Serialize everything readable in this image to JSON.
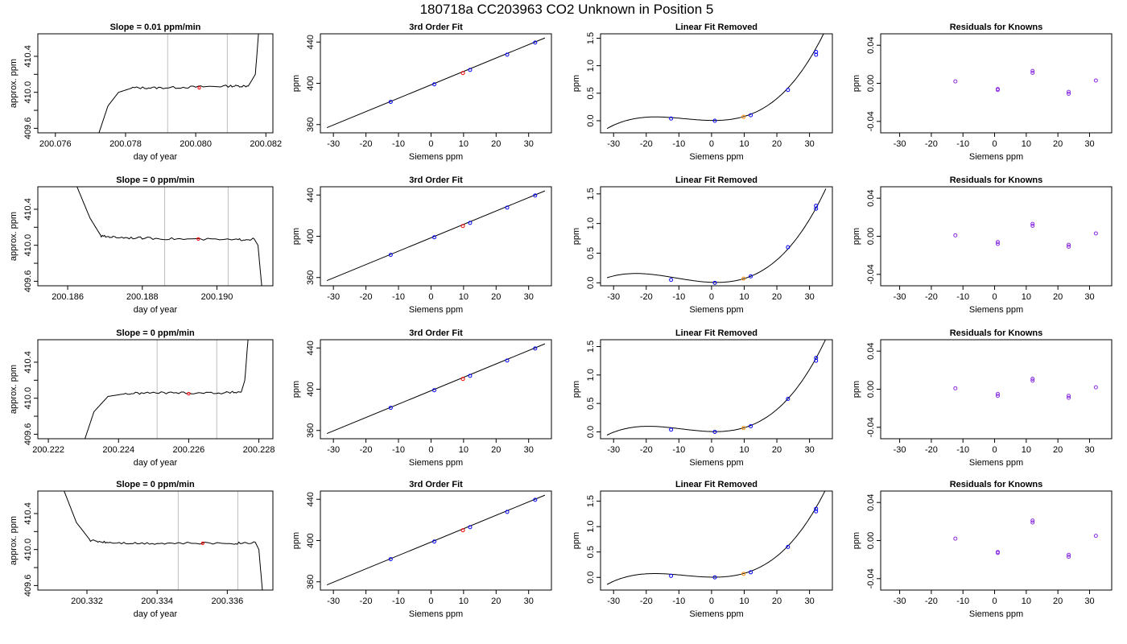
{
  "figure_title": "180718a      CC203963    CO2 Unknown in Position  5",
  "colors": {
    "line": "#000000",
    "known_point": "#0000ff",
    "unknown_point": "#ff0000",
    "residual_point": "#8a2be2",
    "fit_unknown_marker": "#ff8c00",
    "window_line": "#bdbdbd"
  },
  "chart_data": [
    {
      "type": "line",
      "row": 0,
      "title": "Slope =  0.01  ppm/min",
      "xlabel": "day of year",
      "ylabel": "approx. ppm",
      "xlim": [
        200.0755,
        200.0822
      ],
      "ylim": [
        409.55,
        410.65
      ],
      "xticks": [
        200.076,
        200.078,
        200.08,
        200.082
      ],
      "xtick_labels": [
        "200.076",
        "200.078",
        "200.080",
        "200.082"
      ],
      "yticks": [
        409.6,
        410.0,
        410.4
      ],
      "ytick_labels": [
        "409.6",
        "410.0",
        "410.4"
      ],
      "trace": [
        [
          200.0772,
          409.5
        ],
        [
          200.0775,
          409.85
        ],
        [
          200.0778,
          410.0
        ],
        [
          200.0782,
          410.05
        ],
        [
          200.079,
          410.05
        ],
        [
          200.08,
          410.06
        ],
        [
          200.081,
          410.07
        ],
        [
          200.0815,
          410.07
        ],
        [
          200.0817,
          410.2
        ],
        [
          200.0818,
          410.7
        ]
      ],
      "window": [
        200.0792,
        200.0809
      ],
      "unknown_point": [
        200.0801,
        410.05
      ]
    },
    {
      "type": "scatter",
      "row": 0,
      "title": "3rd Order Fit",
      "xlabel": "Siemens ppm",
      "ylabel": "ppm",
      "xlim": [
        -34,
        37
      ],
      "ylim": [
        352,
        448
      ],
      "xticks": [
        -30,
        -20,
        -10,
        0,
        10,
        20,
        30
      ],
      "xtick_labels": [
        "-30",
        "-20",
        "-10",
        "0",
        "10",
        "20",
        "30"
      ],
      "yticks": [
        360,
        400,
        440
      ],
      "ytick_labels": [
        "360",
        "400",
        "440"
      ],
      "fit_line": [
        [
          -32,
          357
        ],
        [
          35,
          444
        ]
      ],
      "known_points": [
        [
          -12.4,
          382
        ],
        [
          1,
          399
        ],
        [
          12,
          413
        ],
        [
          23.4,
          427.8
        ],
        [
          32,
          439.5
        ]
      ],
      "unknown_points": [
        [
          9.8,
          410
        ]
      ]
    },
    {
      "type": "line",
      "row": 0,
      "title": "Linear Fit Removed",
      "xlabel": "Siemens ppm",
      "ylabel": "ppm",
      "xlim": [
        -34,
        37
      ],
      "ylim": [
        -0.22,
        1.58
      ],
      "xticks": [
        -30,
        -20,
        -10,
        0,
        10,
        20,
        30
      ],
      "xtick_labels": [
        "-30",
        "-20",
        "-10",
        "0",
        "10",
        "20",
        "30"
      ],
      "yticks": [
        0,
        0.5,
        1.0,
        1.5
      ],
      "ytick_labels": [
        "0.0",
        "0.5",
        "1.0",
        "1.5"
      ],
      "curve_poly": {
        "d": 2.3e-05,
        "c": 0.00057,
        "b": -0.00072,
        "a": 0.005
      },
      "curve_xrange": [
        -32,
        35
      ],
      "known_points": [
        [
          -12.4,
          0.04
        ],
        [
          1,
          0.0
        ],
        [
          12,
          0.1
        ],
        [
          23.4,
          0.56
        ],
        [
          32,
          1.2
        ],
        [
          32,
          1.25
        ]
      ],
      "unknown_points": [
        [
          9.8,
          0.07
        ]
      ]
    },
    {
      "type": "scatter",
      "row": 0,
      "title": "Residuals for Knowns",
      "xlabel": "Siemens ppm",
      "ylabel": "ppm",
      "xlim": [
        -36,
        37
      ],
      "ylim": [
        -0.052,
        0.052
      ],
      "xticks": [
        -30,
        -20,
        -10,
        0,
        10,
        20,
        30
      ],
      "xtick_labels": [
        "-30",
        "-20",
        "-10",
        "0",
        "10",
        "20",
        "30"
      ],
      "yticks": [
        -0.04,
        0.0,
        0.04
      ],
      "ytick_labels": [
        "-0.04",
        "0.00",
        "0.04"
      ],
      "points": [
        [
          -12.4,
          0.002
        ],
        [
          1,
          -0.006
        ],
        [
          1,
          -0.007
        ],
        [
          12,
          0.011
        ],
        [
          12,
          0.013
        ],
        [
          23.4,
          -0.009
        ],
        [
          23.4,
          -0.011
        ],
        [
          32,
          0.003
        ]
      ]
    },
    {
      "type": "line",
      "row": 1,
      "title": "Slope =  0  ppm/min",
      "xlabel": "day of year",
      "ylabel": "approx. ppm",
      "xlim": [
        200.1852,
        200.1915
      ],
      "ylim": [
        409.55,
        410.65
      ],
      "xticks": [
        200.186,
        200.188,
        200.19
      ],
      "xtick_labels": [
        "200.186",
        "200.188",
        "200.190"
      ],
      "yticks": [
        409.6,
        410.0,
        410.4
      ],
      "ytick_labels": [
        "409.6",
        "410.0",
        "410.4"
      ],
      "trace": [
        [
          200.1862,
          410.7
        ],
        [
          200.1866,
          410.3
        ],
        [
          200.1869,
          410.1
        ],
        [
          200.1873,
          410.09
        ],
        [
          200.188,
          410.08
        ],
        [
          200.189,
          410.07
        ],
        [
          200.1905,
          410.06
        ],
        [
          200.191,
          410.07
        ],
        [
          200.1911,
          410.0
        ],
        [
          200.1912,
          409.55
        ]
      ],
      "window": [
        200.1886,
        200.1903
      ],
      "unknown_point": [
        200.1895,
        410.07
      ]
    },
    {
      "type": "scatter",
      "row": 1,
      "title": "3rd Order Fit",
      "xlabel": "Siemens ppm",
      "ylabel": "ppm",
      "xlim": [
        -34,
        37
      ],
      "ylim": [
        352,
        448
      ],
      "xticks": [
        -30,
        -20,
        -10,
        0,
        10,
        20,
        30
      ],
      "xtick_labels": [
        "-30",
        "-20",
        "-10",
        "0",
        "10",
        "20",
        "30"
      ],
      "yticks": [
        360,
        400,
        440
      ],
      "ytick_labels": [
        "360",
        "400",
        "440"
      ],
      "fit_line": [
        [
          -32,
          357
        ],
        [
          35,
          444
        ]
      ],
      "known_points": [
        [
          -12.4,
          382
        ],
        [
          1,
          399
        ],
        [
          12,
          413
        ],
        [
          23.4,
          427.8
        ],
        [
          32,
          439.5
        ]
      ],
      "unknown_points": [
        [
          9.8,
          410
        ]
      ]
    },
    {
      "type": "line",
      "row": 1,
      "title": "Linear Fit Removed",
      "xlabel": "Siemens ppm",
      "ylabel": "ppm",
      "xlim": [
        -34,
        37
      ],
      "ylim": [
        -0.05,
        1.62
      ],
      "xticks": [
        -30,
        -20,
        -10,
        0,
        10,
        20,
        30
      ],
      "xtick_labels": [
        "-30",
        "-20",
        "-10",
        "0",
        "10",
        "20",
        "30"
      ],
      "yticks": [
        0,
        0.5,
        1.0,
        1.5
      ],
      "ytick_labels": [
        "0.0",
        "0.5",
        "1.0",
        "1.5"
      ],
      "curve_poly": {
        "d": 2e-05,
        "c": 0.00065,
        "b": -0.0021,
        "a": 0.008
      },
      "curve_xrange": [
        -32,
        35
      ],
      "known_points": [
        [
          -12.4,
          0.05
        ],
        [
          1,
          0.0
        ],
        [
          12,
          0.11
        ],
        [
          23.4,
          0.6
        ],
        [
          32,
          1.25
        ],
        [
          32,
          1.3
        ]
      ],
      "unknown_points": [
        [
          9.8,
          0.07
        ]
      ]
    },
    {
      "type": "scatter",
      "row": 1,
      "title": "Residuals for Knowns",
      "xlabel": "Siemens ppm",
      "ylabel": "ppm",
      "xlim": [
        -36,
        37
      ],
      "ylim": [
        -0.052,
        0.052
      ],
      "xticks": [
        -30,
        -20,
        -10,
        0,
        10,
        20,
        30
      ],
      "xtick_labels": [
        "-30",
        "-20",
        "-10",
        "0",
        "10",
        "20",
        "30"
      ],
      "yticks": [
        -0.04,
        0.0,
        0.04
      ],
      "ytick_labels": [
        "-0.04",
        "0.00",
        "0.04"
      ],
      "points": [
        [
          -12.4,
          0.001
        ],
        [
          1,
          -0.006
        ],
        [
          1,
          -0.008
        ],
        [
          12,
          0.011
        ],
        [
          12,
          0.013
        ],
        [
          23.4,
          -0.009
        ],
        [
          23.4,
          -0.011
        ],
        [
          32,
          0.003
        ]
      ]
    },
    {
      "type": "line",
      "row": 2,
      "title": "Slope =  0  ppm/min",
      "xlabel": "day of year",
      "ylabel": "approx. ppm",
      "xlim": [
        200.2217,
        200.2284
      ],
      "ylim": [
        409.55,
        410.65
      ],
      "xticks": [
        200.222,
        200.224,
        200.226,
        200.228
      ],
      "xtick_labels": [
        "200.222",
        "200.224",
        "200.226",
        "200.228"
      ],
      "yticks": [
        409.6,
        410.0,
        410.4
      ],
      "ytick_labels": [
        "409.6",
        "410.0",
        "410.4"
      ],
      "trace": [
        [
          200.223,
          409.5
        ],
        [
          200.2233,
          409.85
        ],
        [
          200.2237,
          410.02
        ],
        [
          200.2242,
          410.05
        ],
        [
          200.225,
          410.06
        ],
        [
          200.226,
          410.06
        ],
        [
          200.227,
          410.06
        ],
        [
          200.2275,
          410.07
        ],
        [
          200.2276,
          410.2
        ],
        [
          200.2277,
          410.7
        ]
      ],
      "window": [
        200.2251,
        200.2268
      ],
      "unknown_point": [
        200.226,
        410.05
      ]
    },
    {
      "type": "scatter",
      "row": 2,
      "title": "3rd Order Fit",
      "xlabel": "Siemens ppm",
      "ylabel": "ppm",
      "xlim": [
        -34,
        37
      ],
      "ylim": [
        352,
        448
      ],
      "xticks": [
        -30,
        -20,
        -10,
        0,
        10,
        20,
        30
      ],
      "xtick_labels": [
        "-30",
        "-20",
        "-10",
        "0",
        "10",
        "20",
        "30"
      ],
      "yticks": [
        360,
        400,
        440
      ],
      "ytick_labels": [
        "360",
        "400",
        "440"
      ],
      "fit_line": [
        [
          -32,
          357
        ],
        [
          35,
          444
        ]
      ],
      "known_points": [
        [
          -12.4,
          382
        ],
        [
          1,
          399
        ],
        [
          12,
          413
        ],
        [
          23.4,
          427.8
        ],
        [
          32,
          439.5
        ]
      ],
      "unknown_points": [
        [
          9.8,
          410
        ]
      ]
    },
    {
      "type": "line",
      "row": 2,
      "title": "Linear Fit Removed",
      "xlabel": "Siemens ppm",
      "ylabel": "ppm",
      "xlim": [
        -34,
        37
      ],
      "ylim": [
        -0.12,
        1.62
      ],
      "xticks": [
        -30,
        -20,
        -10,
        0,
        10,
        20,
        30
      ],
      "xtick_labels": [
        "-30",
        "-20",
        "-10",
        "0",
        "10",
        "20",
        "30"
      ],
      "yticks": [
        0,
        0.5,
        1.0,
        1.5
      ],
      "ytick_labels": [
        "0.0",
        "0.5",
        "1.0",
        "1.5"
      ],
      "curve_poly": {
        "d": 2.2e-05,
        "c": 0.0006,
        "b": -0.0014,
        "a": 0.006
      },
      "curve_xrange": [
        -32,
        35
      ],
      "known_points": [
        [
          -12.4,
          0.04
        ],
        [
          1,
          0.0
        ],
        [
          12,
          0.1
        ],
        [
          23.4,
          0.58
        ],
        [
          32,
          1.25
        ],
        [
          32,
          1.3
        ]
      ],
      "unknown_points": [
        [
          9.8,
          0.07
        ]
      ]
    },
    {
      "type": "scatter",
      "row": 2,
      "title": "Residuals for Knowns",
      "xlabel": "Siemens ppm",
      "ylabel": "ppm",
      "xlim": [
        -36,
        37
      ],
      "ylim": [
        -0.052,
        0.052
      ],
      "xticks": [
        -30,
        -20,
        -10,
        0,
        10,
        20,
        30
      ],
      "xtick_labels": [
        "-30",
        "-20",
        "-10",
        "0",
        "10",
        "20",
        "30"
      ],
      "yticks": [
        -0.04,
        0.0,
        0.04
      ],
      "ytick_labels": [
        "-0.04",
        "0.00",
        "0.04"
      ],
      "points": [
        [
          -12.4,
          0.001
        ],
        [
          1,
          -0.005
        ],
        [
          1,
          -0.007
        ],
        [
          12,
          0.009
        ],
        [
          12,
          0.011
        ],
        [
          23.4,
          -0.007
        ],
        [
          23.4,
          -0.009
        ],
        [
          32,
          0.002
        ]
      ]
    },
    {
      "type": "line",
      "row": 3,
      "title": "Slope =  0  ppm/min",
      "xlabel": "day of year",
      "ylabel": "approx. ppm",
      "xlim": [
        200.3306,
        200.3373
      ],
      "ylim": [
        409.55,
        410.65
      ],
      "xticks": [
        200.332,
        200.334,
        200.336
      ],
      "xtick_labels": [
        "200.332",
        "200.334",
        "200.336"
      ],
      "yticks": [
        409.6,
        410.0,
        410.4
      ],
      "ytick_labels": [
        "409.6",
        "410.0",
        "410.4"
      ],
      "trace": [
        [
          200.3313,
          410.7
        ],
        [
          200.3317,
          410.3
        ],
        [
          200.3321,
          410.1
        ],
        [
          200.3326,
          410.08
        ],
        [
          200.3335,
          410.07
        ],
        [
          200.3345,
          410.07
        ],
        [
          200.3362,
          410.07
        ],
        [
          200.3368,
          410.08
        ],
        [
          200.3369,
          410.0
        ],
        [
          200.337,
          409.55
        ]
      ],
      "window": [
        200.3346,
        200.3363
      ],
      "unknown_point": [
        200.3353,
        410.07
      ]
    },
    {
      "type": "scatter",
      "row": 3,
      "title": "3rd Order Fit",
      "xlabel": "Siemens ppm",
      "ylabel": "ppm",
      "xlim": [
        -34,
        37
      ],
      "ylim": [
        352,
        448
      ],
      "xticks": [
        -30,
        -20,
        -10,
        0,
        10,
        20,
        30
      ],
      "xtick_labels": [
        "-30",
        "-20",
        "-10",
        "0",
        "10",
        "20",
        "30"
      ],
      "yticks": [
        360,
        400,
        440
      ],
      "ytick_labels": [
        "360",
        "400",
        "440"
      ],
      "fit_line": [
        [
          -32,
          357
        ],
        [
          35,
          444
        ]
      ],
      "known_points": [
        [
          -12.4,
          382
        ],
        [
          1,
          399
        ],
        [
          12,
          413
        ],
        [
          23.4,
          427.8
        ],
        [
          32,
          439.5
        ]
      ],
      "unknown_points": [
        [
          9.8,
          410
        ]
      ]
    },
    {
      "type": "line",
      "row": 3,
      "title": "Linear Fit Removed",
      "xlabel": "Siemens ppm",
      "ylabel": "ppm",
      "xlim": [
        -34,
        37
      ],
      "ylim": [
        -0.25,
        1.7
      ],
      "xticks": [
        -30,
        -20,
        -10,
        0,
        10,
        20,
        30
      ],
      "xtick_labels": [
        "-30",
        "-20",
        "-10",
        "0",
        "10",
        "20",
        "30"
      ],
      "yticks": [
        0,
        0.5,
        1.0,
        1.5
      ],
      "ytick_labels": [
        "0.0",
        "0.5",
        "1.0",
        "1.5"
      ],
      "curve_poly": {
        "d": 2.4e-05,
        "c": 0.0006,
        "b": -0.0009,
        "a": 0.004
      },
      "curve_xrange": [
        -32,
        35
      ],
      "known_points": [
        [
          -12.4,
          0.03
        ],
        [
          1,
          0.0
        ],
        [
          12,
          0.1
        ],
        [
          23.4,
          0.6
        ],
        [
          32,
          1.3
        ],
        [
          32,
          1.35
        ]
      ],
      "unknown_points": [
        [
          9.8,
          0.07
        ]
      ]
    },
    {
      "type": "scatter",
      "row": 3,
      "title": "Residuals for Knowns",
      "xlabel": "Siemens ppm",
      "ylabel": "ppm",
      "xlim": [
        -36,
        37
      ],
      "ylim": [
        -0.052,
        0.052
      ],
      "xticks": [
        -30,
        -20,
        -10,
        0,
        10,
        20,
        30
      ],
      "xtick_labels": [
        "-30",
        "-20",
        "-10",
        "0",
        "10",
        "20",
        "30"
      ],
      "yticks": [
        -0.04,
        0.0,
        0.04
      ],
      "ytick_labels": [
        "-0.04",
        "0.00",
        "0.04"
      ],
      "points": [
        [
          -12.4,
          0.002
        ],
        [
          1,
          -0.012
        ],
        [
          1,
          -0.013
        ],
        [
          12,
          0.019
        ],
        [
          12,
          0.021
        ],
        [
          23.4,
          -0.015
        ],
        [
          23.4,
          -0.017
        ],
        [
          32,
          0.005
        ]
      ]
    }
  ]
}
